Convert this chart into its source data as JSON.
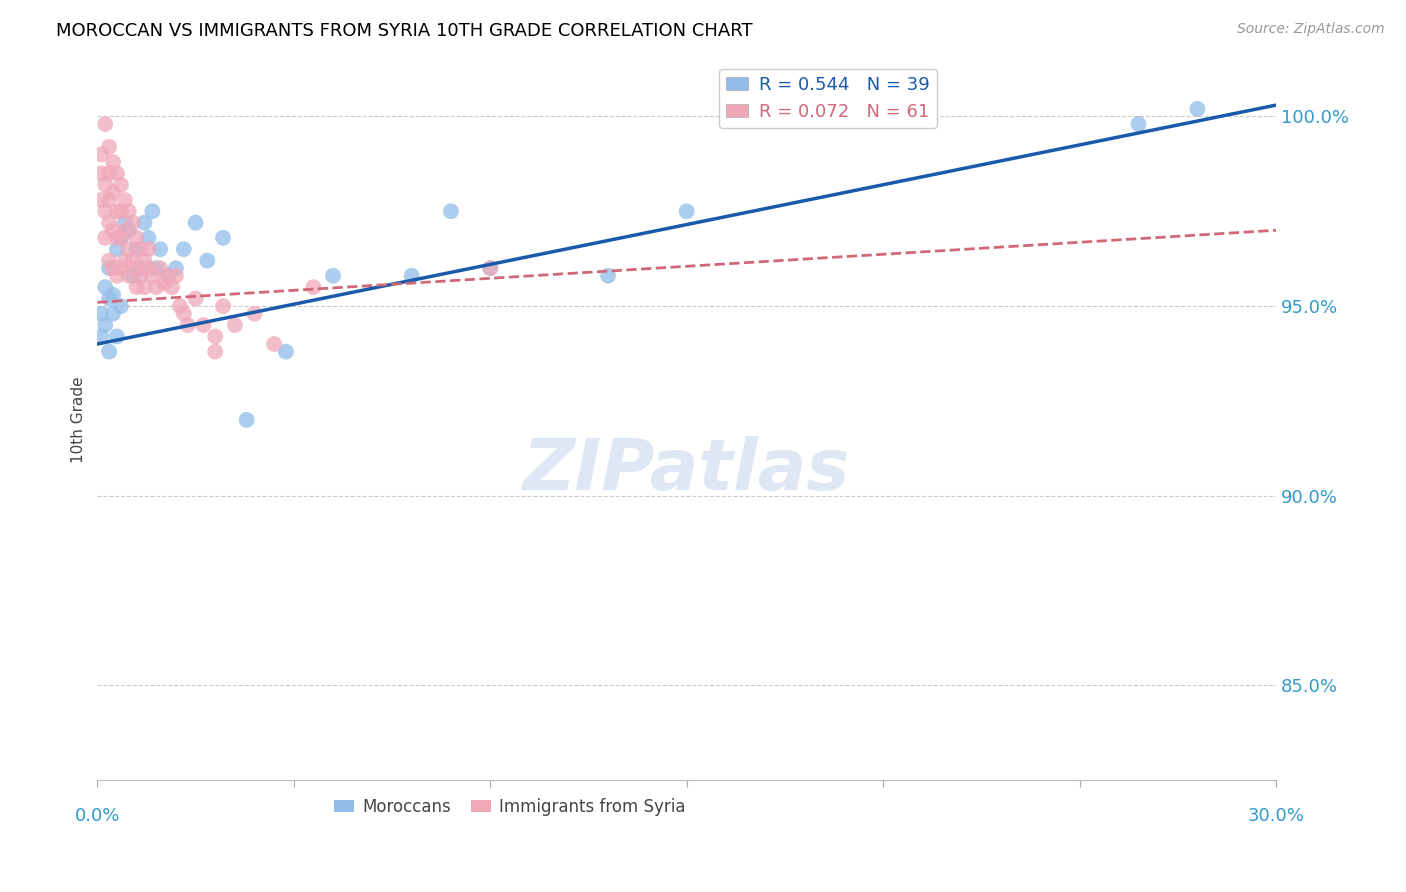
{
  "title": "MOROCCAN VS IMMIGRANTS FROM SYRIA 10TH GRADE CORRELATION CHART",
  "source": "Source: ZipAtlas.com",
  "ylabel": "10th Grade",
  "R_moroccan": 0.544,
  "N_moroccan": 39,
  "R_syria": 0.072,
  "N_syria": 61,
  "color_moroccan": "#90bde8",
  "color_syria": "#f0a8b8",
  "line_color_moroccan": "#1a5aaa",
  "line_color_syria": "#d06878",
  "xlim": [
    0.0,
    0.3
  ],
  "ylim": [
    0.825,
    1.015
  ],
  "ytick_vals": [
    0.85,
    0.9,
    0.95,
    1.0
  ],
  "ytick_labels": [
    "85.0%",
    "90.0%",
    "95.0%",
    "100.0%"
  ],
  "moroccan_x": [
    0.001,
    0.001,
    0.002,
    0.002,
    0.003,
    0.003,
    0.003,
    0.004,
    0.004,
    0.005,
    0.005,
    0.006,
    0.006,
    0.007,
    0.008,
    0.009,
    0.01,
    0.011,
    0.012,
    0.013,
    0.014,
    0.015,
    0.016,
    0.018,
    0.02,
    0.022,
    0.025,
    0.028,
    0.032,
    0.038,
    0.048,
    0.06,
    0.08,
    0.09,
    0.1,
    0.13,
    0.15,
    0.265,
    0.28
  ],
  "moroccan_y": [
    0.948,
    0.942,
    0.955,
    0.945,
    0.96,
    0.952,
    0.938,
    0.953,
    0.948,
    0.965,
    0.942,
    0.95,
    0.968,
    0.972,
    0.97,
    0.958,
    0.965,
    0.96,
    0.972,
    0.968,
    0.975,
    0.96,
    0.965,
    0.958,
    0.96,
    0.965,
    0.972,
    0.962,
    0.968,
    0.92,
    0.938,
    0.958,
    0.958,
    0.975,
    0.96,
    0.958,
    0.975,
    0.998,
    1.002
  ],
  "syria_x": [
    0.001,
    0.001,
    0.001,
    0.002,
    0.002,
    0.002,
    0.002,
    0.003,
    0.003,
    0.003,
    0.003,
    0.003,
    0.004,
    0.004,
    0.004,
    0.004,
    0.005,
    0.005,
    0.005,
    0.005,
    0.006,
    0.006,
    0.006,
    0.006,
    0.007,
    0.007,
    0.007,
    0.008,
    0.008,
    0.008,
    0.009,
    0.009,
    0.01,
    0.01,
    0.01,
    0.011,
    0.011,
    0.012,
    0.012,
    0.013,
    0.013,
    0.014,
    0.015,
    0.016,
    0.017,
    0.018,
    0.019,
    0.02,
    0.021,
    0.022,
    0.023,
    0.025,
    0.027,
    0.03,
    0.032,
    0.035,
    0.04,
    0.045,
    0.055,
    0.03,
    0.1
  ],
  "syria_y": [
    0.99,
    0.985,
    0.978,
    0.998,
    0.982,
    0.975,
    0.968,
    0.992,
    0.985,
    0.978,
    0.972,
    0.962,
    0.988,
    0.98,
    0.97,
    0.96,
    0.985,
    0.975,
    0.968,
    0.958,
    0.982,
    0.975,
    0.968,
    0.96,
    0.978,
    0.97,
    0.962,
    0.975,
    0.965,
    0.958,
    0.972,
    0.962,
    0.968,
    0.96,
    0.955,
    0.965,
    0.958,
    0.962,
    0.955,
    0.965,
    0.96,
    0.958,
    0.955,
    0.96,
    0.956,
    0.958,
    0.955,
    0.958,
    0.95,
    0.948,
    0.945,
    0.952,
    0.945,
    0.942,
    0.95,
    0.945,
    0.948,
    0.94,
    0.955,
    0.938,
    0.96
  ],
  "watermark_text": "ZIPatlas",
  "watermark_color": "#c8d8ec",
  "watermark_fontsize": 52
}
